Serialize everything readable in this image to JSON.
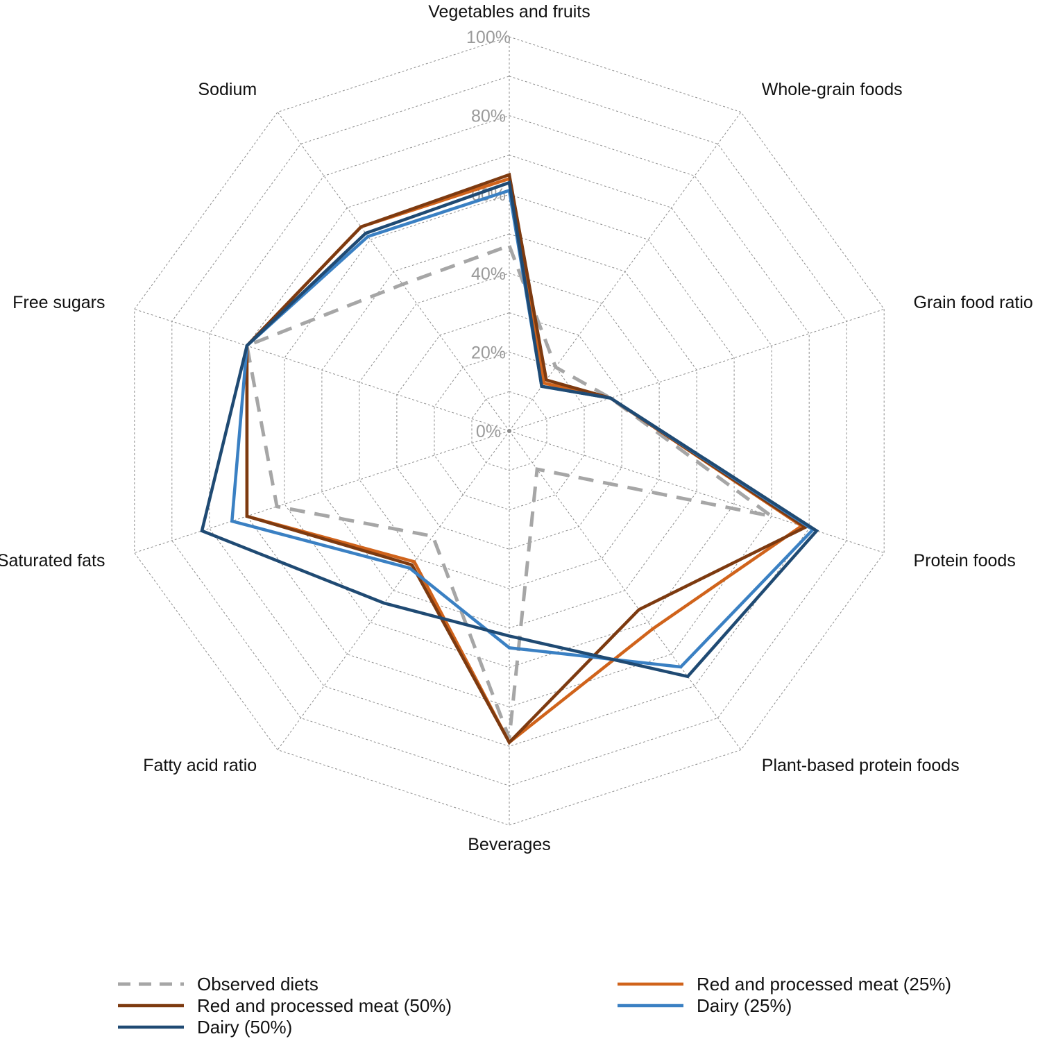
{
  "chart_data": {
    "type": "radar",
    "title": "",
    "axes": [
      "Vegetables and fruits",
      "Whole-grain foods",
      "Grain food ratio",
      "Protein foods",
      "Plant-based protein foods",
      "Beverages",
      "Fatty acid ratio",
      "Saturated fats",
      "Free sugars",
      "Sodium"
    ],
    "ticks": [
      "0%",
      "20%",
      "40%",
      "60%",
      "80%",
      "100%"
    ],
    "rlim": [
      0,
      100
    ],
    "grid": true,
    "legend_position": "bottom",
    "series": [
      {
        "name": "Observed diets",
        "color": "#a6a6a6",
        "dash": true,
        "values": [
          47,
          20,
          27,
          70,
          12,
          78,
          33,
          62,
          70,
          46
        ]
      },
      {
        "name": "Red and processed meat (25%)",
        "color": "#d0631b",
        "dash": false,
        "values": [
          64,
          15,
          27,
          78,
          62,
          79,
          41,
          70,
          70,
          64
        ]
      },
      {
        "name": "Red and processed meat (50%)",
        "color": "#7d3a10",
        "dash": false,
        "values": [
          65,
          16,
          27,
          79,
          56,
          79,
          42,
          70,
          70,
          64
        ]
      },
      {
        "name": "Dairy (25%)",
        "color": "#3a80c3",
        "dash": false,
        "values": [
          61,
          14,
          27,
          81,
          74,
          55,
          43,
          74,
          70,
          61
        ]
      },
      {
        "name": "Dairy (50%)",
        "color": "#1f4a73",
        "dash": false,
        "values": [
          63,
          14,
          27,
          82,
          77,
          52,
          54,
          82,
          70,
          62
        ]
      }
    ],
    "legend_order": [
      0,
      2,
      4,
      1,
      3
    ]
  }
}
